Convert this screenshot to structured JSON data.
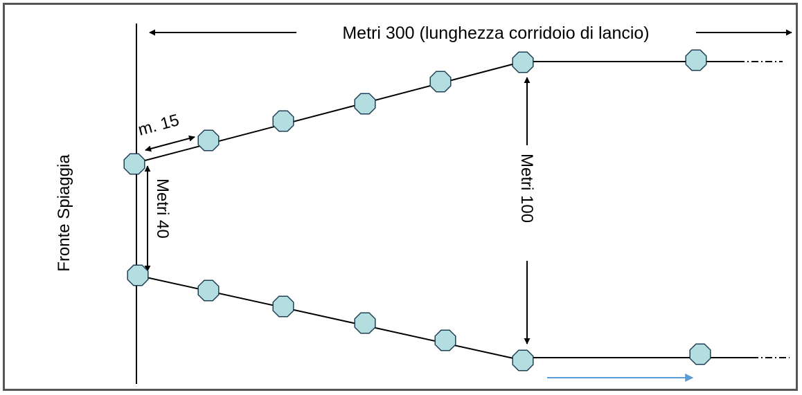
{
  "labels": {
    "top_dimension": "Metri 300 (lunghezza corridoio di lancio)",
    "spacing": "m. 15",
    "beach_front": "Fronte Spiaggia",
    "inner_width": "Metri 40",
    "outer_width": "Metri 100"
  },
  "colors": {
    "buoy_fill": "#b4dde0",
    "buoy_stroke": "#1f3f55",
    "line": "#000000",
    "direction_arrow": "#5b9bd5",
    "border": "#555555"
  }
}
